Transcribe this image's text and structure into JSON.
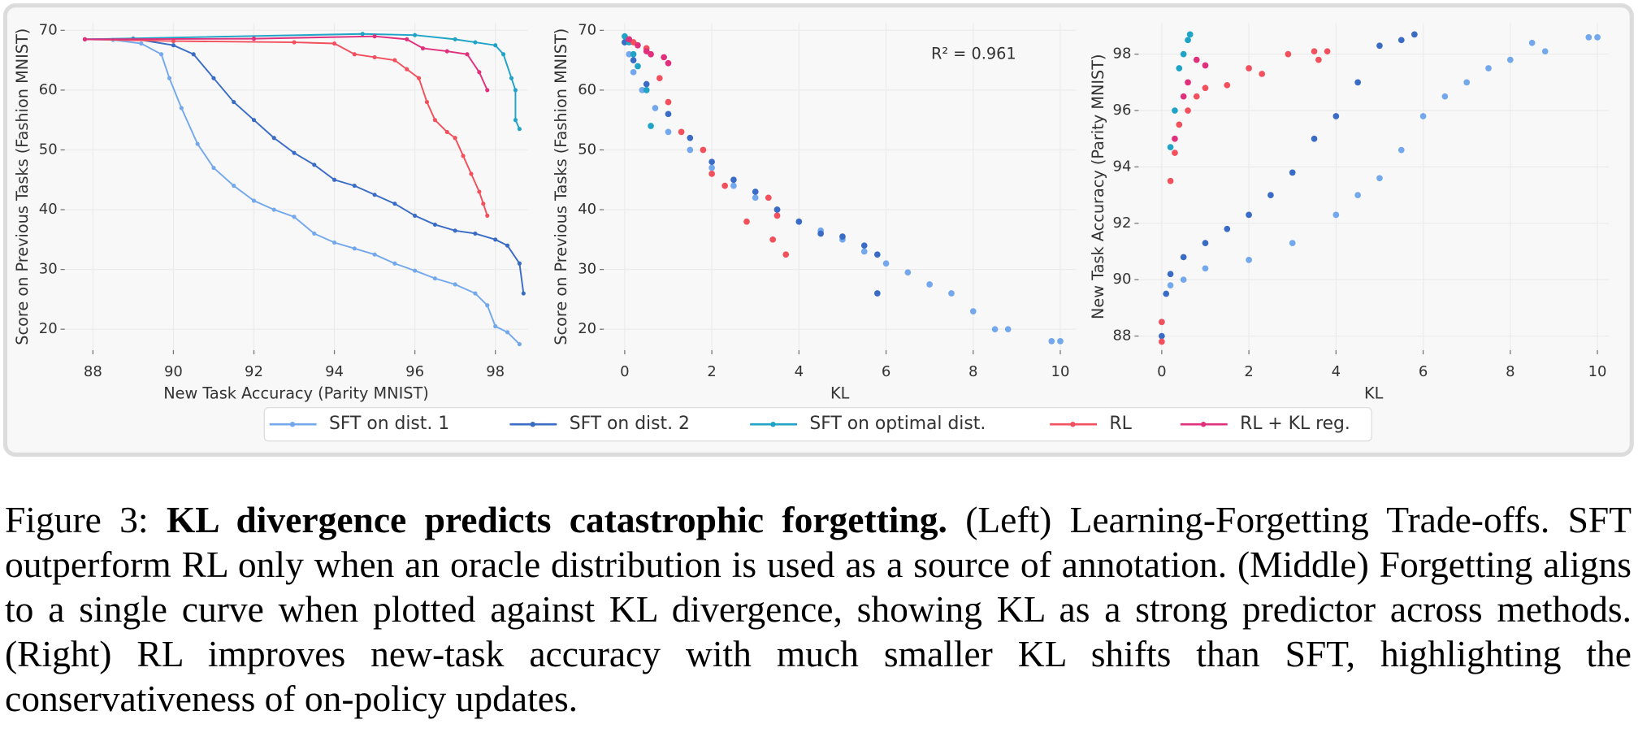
{
  "chart_data": [
    {
      "type": "line",
      "xlabel": "New Task Accuracy (Parity MNIST)",
      "ylabel": "Score on Previous Tasks (Fashion MNIST)",
      "xlim": [
        87.3,
        98.8
      ],
      "ylim": [
        16.5,
        71.2
      ],
      "xticks": [
        88,
        90,
        92,
        94,
        96,
        98
      ],
      "yticks": [
        20,
        30,
        40,
        50,
        60,
        70
      ],
      "grid": true,
      "series": [
        {
          "name": "SFT on dist. 1",
          "color": "#74a8ec",
          "x": [
            87.8,
            88.5,
            89.2,
            89.7,
            89.9,
            90.2,
            90.6,
            91,
            91.5,
            92,
            92.5,
            93,
            93.5,
            94,
            94.5,
            95,
            95.5,
            96,
            96.5,
            97,
            97.5,
            97.8,
            98,
            98.3,
            98.6
          ],
          "values": [
            68.5,
            68.4,
            67.8,
            66,
            62,
            57,
            51,
            47,
            44,
            41.5,
            40,
            38.8,
            36,
            34.5,
            33.5,
            32.5,
            31,
            29.8,
            28.5,
            27.5,
            26,
            24,
            20.5,
            19.5,
            17.5
          ]
        },
        {
          "name": "SFT on dist. 2",
          "color": "#3a6cc6",
          "x": [
            87.8,
            89,
            90,
            90.5,
            91,
            91.5,
            92,
            92.5,
            93,
            93.5,
            94,
            94.5,
            95,
            95.5,
            96,
            96.5,
            97,
            97.5,
            98,
            98.3,
            98.6,
            98.7
          ],
          "values": [
            68.5,
            68.6,
            67.5,
            66,
            62,
            58,
            55,
            52,
            49.5,
            47.5,
            45,
            44,
            42.5,
            41,
            39,
            37.5,
            36.5,
            36,
            35,
            34,
            31,
            26
          ]
        },
        {
          "name": "SFT on optimal dist.",
          "color": "#1fa3c6",
          "x": [
            87.8,
            94.7,
            96,
            97,
            97.5,
            98,
            98.2,
            98.4,
            98.5,
            98.5,
            98.6
          ],
          "values": [
            68.5,
            69.4,
            69.2,
            68.5,
            68,
            67.5,
            66,
            62,
            60,
            55,
            53.5
          ]
        },
        {
          "name": "RL",
          "color": "#f2505c",
          "x": [
            87.8,
            90,
            93,
            94,
            94.5,
            95,
            95.5,
            95.8,
            96.1,
            96.3,
            96.5,
            96.8,
            97,
            97.2,
            97.4,
            97.6,
            97.7,
            97.8
          ],
          "values": [
            68.5,
            68.2,
            68,
            67.8,
            66,
            65.5,
            65,
            63.5,
            62,
            58,
            55,
            53,
            52,
            49,
            46,
            43,
            41,
            39
          ]
        },
        {
          "name": "RL + KL reg.",
          "color": "#e0307c",
          "x": [
            87.8,
            92,
            95,
            95.8,
            96.2,
            96.8,
            97.3,
            97.6,
            97.8
          ],
          "values": [
            68.5,
            68.6,
            69,
            68.5,
            67,
            66.5,
            66,
            63,
            60
          ]
        }
      ]
    },
    {
      "type": "scatter",
      "xlabel": "KL",
      "ylabel": "Score on Previous Tasks (Fashion MNIST)",
      "annotation": "R² = 0.961",
      "xlim": [
        -0.48,
        10.36
      ],
      "ylim": [
        16.5,
        71.2
      ],
      "xticks": [
        0,
        2,
        4,
        6,
        8,
        10
      ],
      "yticks": [
        20,
        30,
        40,
        50,
        60,
        70
      ],
      "grid": true,
      "series": [
        {
          "color": "#74a8ec",
          "x": [
            0,
            0.1,
            0.2,
            0.4,
            0.7,
            1,
            1.5,
            2,
            2.5,
            3,
            3.5,
            4,
            4.5,
            5,
            5.5,
            6,
            6.5,
            7,
            7.5,
            8,
            8.5,
            8.8,
            9.8,
            10
          ],
          "values": [
            68,
            66,
            63,
            60,
            57,
            53,
            50,
            47,
            44,
            42,
            40,
            38,
            36.5,
            35,
            33,
            31,
            29.5,
            27.5,
            26,
            23,
            20,
            20,
            18,
            18
          ]
        },
        {
          "color": "#3a6cc6",
          "x": [
            0,
            0.2,
            0.5,
            1,
            1.5,
            2,
            2.5,
            3,
            3.5,
            4,
            4.5,
            5,
            5.5,
            5.8,
            5.8
          ],
          "values": [
            68,
            65,
            61,
            56,
            52,
            48,
            45,
            43,
            40,
            38,
            36,
            35.5,
            34,
            32.5,
            26
          ]
        },
        {
          "color": "#1fa3c6",
          "x": [
            0,
            0.1,
            0.2,
            0.3,
            0.5,
            0.6
          ],
          "values": [
            69,
            68,
            66,
            64,
            60,
            54
          ]
        },
        {
          "color": "#f2505c",
          "x": [
            0.2,
            0.5,
            0.8,
            1,
            1.3,
            1.8,
            2,
            2.3,
            2.8,
            3.3,
            3.4,
            3.7,
            3.5
          ],
          "values": [
            68,
            67,
            62,
            58,
            53,
            50,
            46,
            44,
            38,
            42,
            35,
            32.5,
            39
          ]
        },
        {
          "color": "#e0307c",
          "x": [
            0.1,
            0.3,
            0.5,
            0.6,
            0.9,
            1
          ],
          "values": [
            68.5,
            67.5,
            66.5,
            66,
            65.5,
            64.5
          ]
        }
      ]
    },
    {
      "type": "scatter",
      "xlabel": "KL",
      "ylabel": "New Task Accuracy (Parity MNIST)",
      "xlim": [
        -0.53,
        10.26
      ],
      "ylim": [
        87.5,
        99.1
      ],
      "xticks": [
        0,
        2,
        4,
        6,
        8,
        10
      ],
      "yticks": [
        88,
        90,
        92,
        94,
        96,
        98
      ],
      "grid": true,
      "series": [
        {
          "color": "#74a8ec",
          "x": [
            0,
            0.2,
            0.5,
            1,
            2,
            3,
            4,
            4.5,
            5,
            5.5,
            6,
            6.5,
            7,
            7.5,
            8,
            8.5,
            8.8,
            9.8,
            10
          ],
          "values": [
            88.5,
            89.8,
            90,
            90.4,
            90.7,
            91.3,
            92.3,
            93,
            93.6,
            94.6,
            95.8,
            96.5,
            97,
            97.5,
            97.8,
            98.4,
            98.1,
            98.6,
            98.6
          ]
        },
        {
          "color": "#3a6cc6",
          "x": [
            0,
            0.1,
            0.2,
            0.5,
            1,
            1.5,
            2,
            2.5,
            3,
            3.5,
            4,
            4.5,
            5,
            5.5,
            5.8
          ],
          "values": [
            88,
            89.5,
            90.2,
            90.8,
            91.3,
            91.8,
            92.3,
            93,
            93.8,
            95,
            95.8,
            97,
            98.3,
            98.5,
            98.7
          ]
        },
        {
          "color": "#1fa3c6",
          "x": [
            0.2,
            0.3,
            0.4,
            0.5,
            0.6,
            0.65
          ],
          "values": [
            94.7,
            96,
            97.5,
            98,
            98.5,
            98.7
          ]
        },
        {
          "color": "#f2505c",
          "x": [
            0,
            0,
            0.2,
            0.3,
            0.4,
            0.6,
            0.8,
            1,
            1.5,
            2,
            2.3,
            2.9,
            3.5,
            3.8,
            3.6
          ],
          "values": [
            87.8,
            88.5,
            93.5,
            94.5,
            95.5,
            96,
            96.5,
            96.8,
            96.9,
            97.5,
            97.3,
            98,
            98.1,
            98.1,
            97.8
          ]
        },
        {
          "color": "#e0307c",
          "x": [
            0.3,
            0.5,
            0.6,
            0.8,
            1
          ],
          "values": [
            95,
            96.5,
            97,
            97.8,
            97.6
          ]
        }
      ]
    }
  ],
  "caption": {
    "label": "Figure 3:",
    "title": "KL divergence predicts catastrophic forgetting.",
    "text": "(Left) Learning-Forgetting Trade-offs. SFT outperform RL only when an oracle distribution is used as a source of annotation.  (Middle) Forgetting aligns to a single curve when plotted against KL divergence, showing KL as a strong predictor across methods.  (Right) RL improves new-task accuracy with much smaller KL shifts than SFT, highlighting the conservativeness of on-policy updates."
  }
}
